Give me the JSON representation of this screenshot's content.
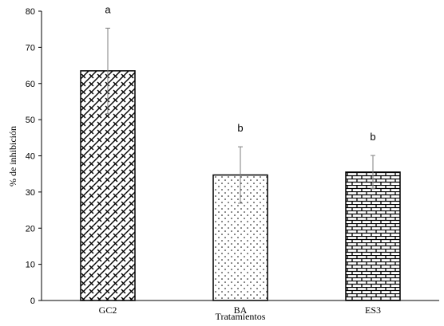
{
  "chart_data": {
    "type": "bar",
    "title": "",
    "xlabel": "Tratamientos",
    "ylabel": "% de inhibición",
    "ylim": [
      0,
      80
    ],
    "yticks": [
      0,
      10,
      20,
      30,
      40,
      50,
      60,
      70,
      80
    ],
    "grid": false,
    "categories": [
      "GC2",
      "BA",
      "ES3"
    ],
    "values": [
      63.5,
      34.7,
      35.5
    ],
    "errors": [
      11.8,
      7.8,
      4.6
    ],
    "significance": [
      "a",
      "b",
      "b"
    ],
    "patterns": [
      "diagonal-weave",
      "dots",
      "brick"
    ],
    "colors": {
      "bar_fill": "#ffffff",
      "bar_stroke": "#000000",
      "error_bar": "#7f7f7f"
    }
  }
}
